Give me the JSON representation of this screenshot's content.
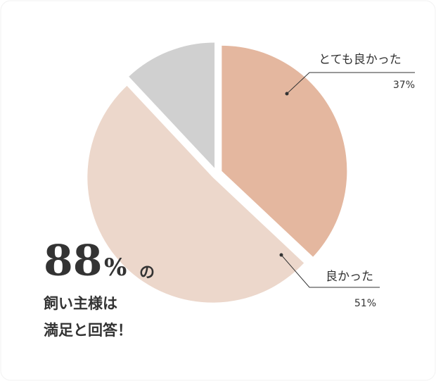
{
  "chart_data": {
    "type": "pie",
    "categories": [
      "とても良かった",
      "良かった",
      null
    ],
    "values": [
      37,
      51,
      12
    ],
    "value_labels": [
      "37%",
      "51%",
      null
    ],
    "colors": [
      "#e4b79f",
      "#ecd7cb",
      "#d0d0d0"
    ]
  },
  "highlight": {
    "value": 88,
    "unit": "%",
    "suffix": "の",
    "lines": [
      "飼い主様は",
      "満足と回答！"
    ]
  }
}
